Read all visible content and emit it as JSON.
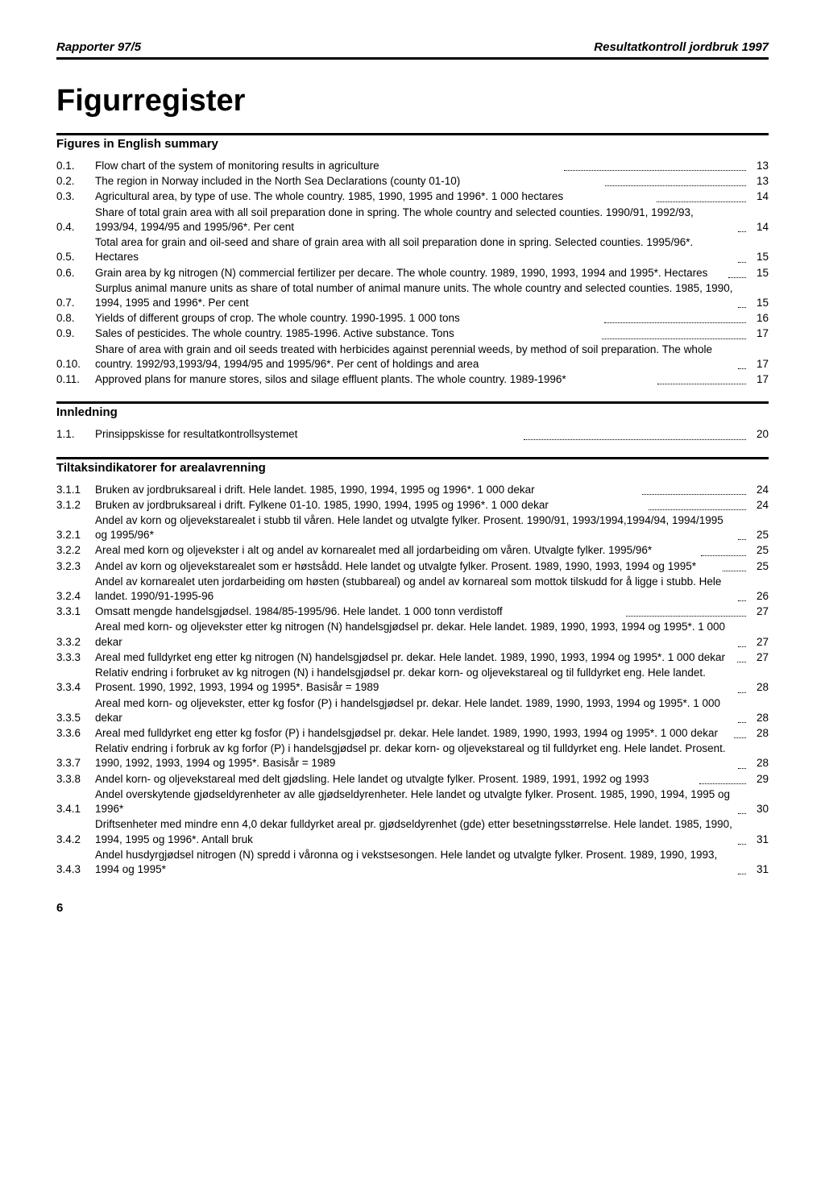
{
  "header": {
    "left": "Rapporter 97/5",
    "right": "Resultatkontroll jordbruk 1997"
  },
  "title": "Figurregister",
  "sections": [
    {
      "title": "Figures in English summary",
      "entries": [
        {
          "num": "0.1.",
          "text": "Flow chart of the system of monitoring results in agriculture",
          "page": "13"
        },
        {
          "num": "0.2.",
          "text": "The region in Norway included in the North Sea Declarations (county 01-10)",
          "page": "13"
        },
        {
          "num": "0.3.",
          "text": "Agricultural area, by type of use. The whole country. 1985, 1990, 1995 and 1996*. 1 000 hectares",
          "page": "14"
        },
        {
          "num": "0.4.",
          "text": "Share of total grain area with all soil preparation done in spring. The whole country and selected counties. 1990/91, 1992/93, 1993/94, 1994/95 and 1995/96*. Per cent",
          "page": "14"
        },
        {
          "num": "0.5.",
          "text": "Total area for grain and oil-seed and share of grain area with all soil preparation done in spring. Selected counties. 1995/96*. Hectares",
          "page": "15"
        },
        {
          "num": "0.6.",
          "text": "Grain area by kg nitrogen (N) commercial fertilizer per decare. The whole country. 1989, 1990, 1993, 1994 and 1995*. Hectares",
          "page": "15"
        },
        {
          "num": "0.7.",
          "text": "Surplus animal manure units as share of total number of animal manure units. The whole country and selected counties. 1985, 1990, 1994, 1995 and 1996*. Per cent",
          "page": "15"
        },
        {
          "num": "0.8.",
          "text": "Yields of different groups of crop. The whole country. 1990-1995. 1 000 tons",
          "page": "16"
        },
        {
          "num": "0.9.",
          "text": "Sales of pesticides. The whole country. 1985-1996. Active substance. Tons",
          "page": "17"
        },
        {
          "num": "0.10.",
          "text": "Share of area with grain and oil seeds treated with herbicides against perennial weeds, by method of soil preparation. The whole country. 1992/93,1993/94, 1994/95 and 1995/96*. Per cent of holdings and area",
          "page": "17"
        },
        {
          "num": "0.11.",
          "text": "Approved plans for manure stores, silos and silage effluent plants. The whole country. 1989-1996*",
          "page": "17"
        }
      ]
    },
    {
      "title": "Innledning",
      "entries": [
        {
          "num": "1.1.",
          "text": "Prinsippskisse for resultatkontrollsystemet",
          "page": "20"
        }
      ]
    },
    {
      "title": "Tiltaksindikatorer for arealavrenning",
      "entries": [
        {
          "num": "3.1.1",
          "text": "Bruken av jordbruksareal i drift. Hele landet. 1985, 1990, 1994, 1995 og 1996*. 1 000 dekar",
          "page": "24"
        },
        {
          "num": "3.1.2",
          "text": "Bruken av jordbruksareal i drift. Fylkene 01-10. 1985, 1990, 1994, 1995 og 1996*. 1 000 dekar",
          "page": "24"
        },
        {
          "num": "3.2.1",
          "text": "Andel av korn og oljevekstarealet i stubb til våren. Hele landet og utvalgte fylker. Prosent. 1990/91, 1993/1994,1994/94, 1994/1995 og 1995/96*",
          "page": "25"
        },
        {
          "num": "3.2.2",
          "text": "Areal med korn og oljevekster i alt og andel av kornarealet med all jordarbeiding om våren. Utvalgte fylker. 1995/96*",
          "page": "25"
        },
        {
          "num": "3.2.3",
          "text": "Andel av korn og oljevekstarealet som er høstsådd. Hele landet og utvalgte fylker. Prosent. 1989, 1990, 1993, 1994 og 1995*",
          "page": "25"
        },
        {
          "num": "3.2.4",
          "text": "Andel av kornarealet uten jordarbeiding om høsten (stubbareal) og andel av kornareal som mottok tilskudd for å ligge i stubb. Hele landet. 1990/91-1995-96",
          "page": "26"
        },
        {
          "num": "3.3.1",
          "text": "Omsatt mengde handelsgjødsel. 1984/85-1995/96. Hele landet. 1 000 tonn verdistoff",
          "page": "27"
        },
        {
          "num": "3.3.2",
          "text": "Areal med korn- og oljevekster etter kg nitrogen (N) handelsgjødsel pr. dekar. Hele landet. 1989, 1990, 1993, 1994 og 1995*. 1 000 dekar",
          "page": "27"
        },
        {
          "num": "3.3.3",
          "text": "Areal med fulldyrket eng etter kg nitrogen (N) handelsgjødsel pr. dekar. Hele landet. 1989, 1990, 1993, 1994 og 1995*. 1 000 dekar",
          "page": "27"
        },
        {
          "num": "3.3.4",
          "text": "Relativ endring i forbruket av kg nitrogen (N) i handelsgjødsel pr. dekar korn- og oljevekstareal og til fulldyrket eng. Hele landet. Prosent. 1990, 1992, 1993, 1994 og 1995*. Basisår = 1989",
          "page": "28"
        },
        {
          "num": "3.3.5",
          "text": "Areal med korn- og oljevekster, etter kg fosfor (P) i handelsgjødsel pr. dekar. Hele landet. 1989, 1990, 1993, 1994 og 1995*. 1 000 dekar",
          "page": "28"
        },
        {
          "num": "3.3.6",
          "text": "Areal med fulldyrket eng etter kg fosfor (P) i handelsgjødsel pr. dekar. Hele landet. 1989, 1990, 1993, 1994 og 1995*. 1 000 dekar",
          "page": "28"
        },
        {
          "num": "3.3.7",
          "text": "Relativ endring i forbruk av kg forfor (P) i handelsgjødsel pr. dekar korn- og oljevekstareal og til fulldyrket eng. Hele landet. Prosent. 1990, 1992, 1993, 1994 og 1995*. Basisår = 1989",
          "page": "28"
        },
        {
          "num": "3.3.8",
          "text": "Andel korn- og oljevekstareal med delt gjødsling. Hele landet og utvalgte fylker. Prosent. 1989, 1991, 1992 og 1993",
          "page": "29"
        },
        {
          "num": "3.4.1",
          "text": "Andel overskytende gjødseldyrenheter av alle gjødseldyrenheter. Hele landet og utvalgte fylker. Prosent. 1985, 1990, 1994, 1995 og 1996*",
          "page": "30"
        },
        {
          "num": "3.4.2",
          "text": "Driftsenheter med mindre enn 4,0 dekar fulldyrket areal pr. gjødseldyrenhet (gde) etter besetningsstørrelse. Hele landet. 1985, 1990, 1994, 1995 og 1996*. Antall bruk",
          "page": "31"
        },
        {
          "num": "3.4.3",
          "text": "Andel husdyrgjødsel nitrogen (N) spredd i våronna og i vekstsesongen. Hele landet og utvalgte fylker. Prosent. 1989, 1990, 1993, 1994 og 1995*",
          "page": "31"
        }
      ]
    }
  ],
  "pageNumber": "6"
}
